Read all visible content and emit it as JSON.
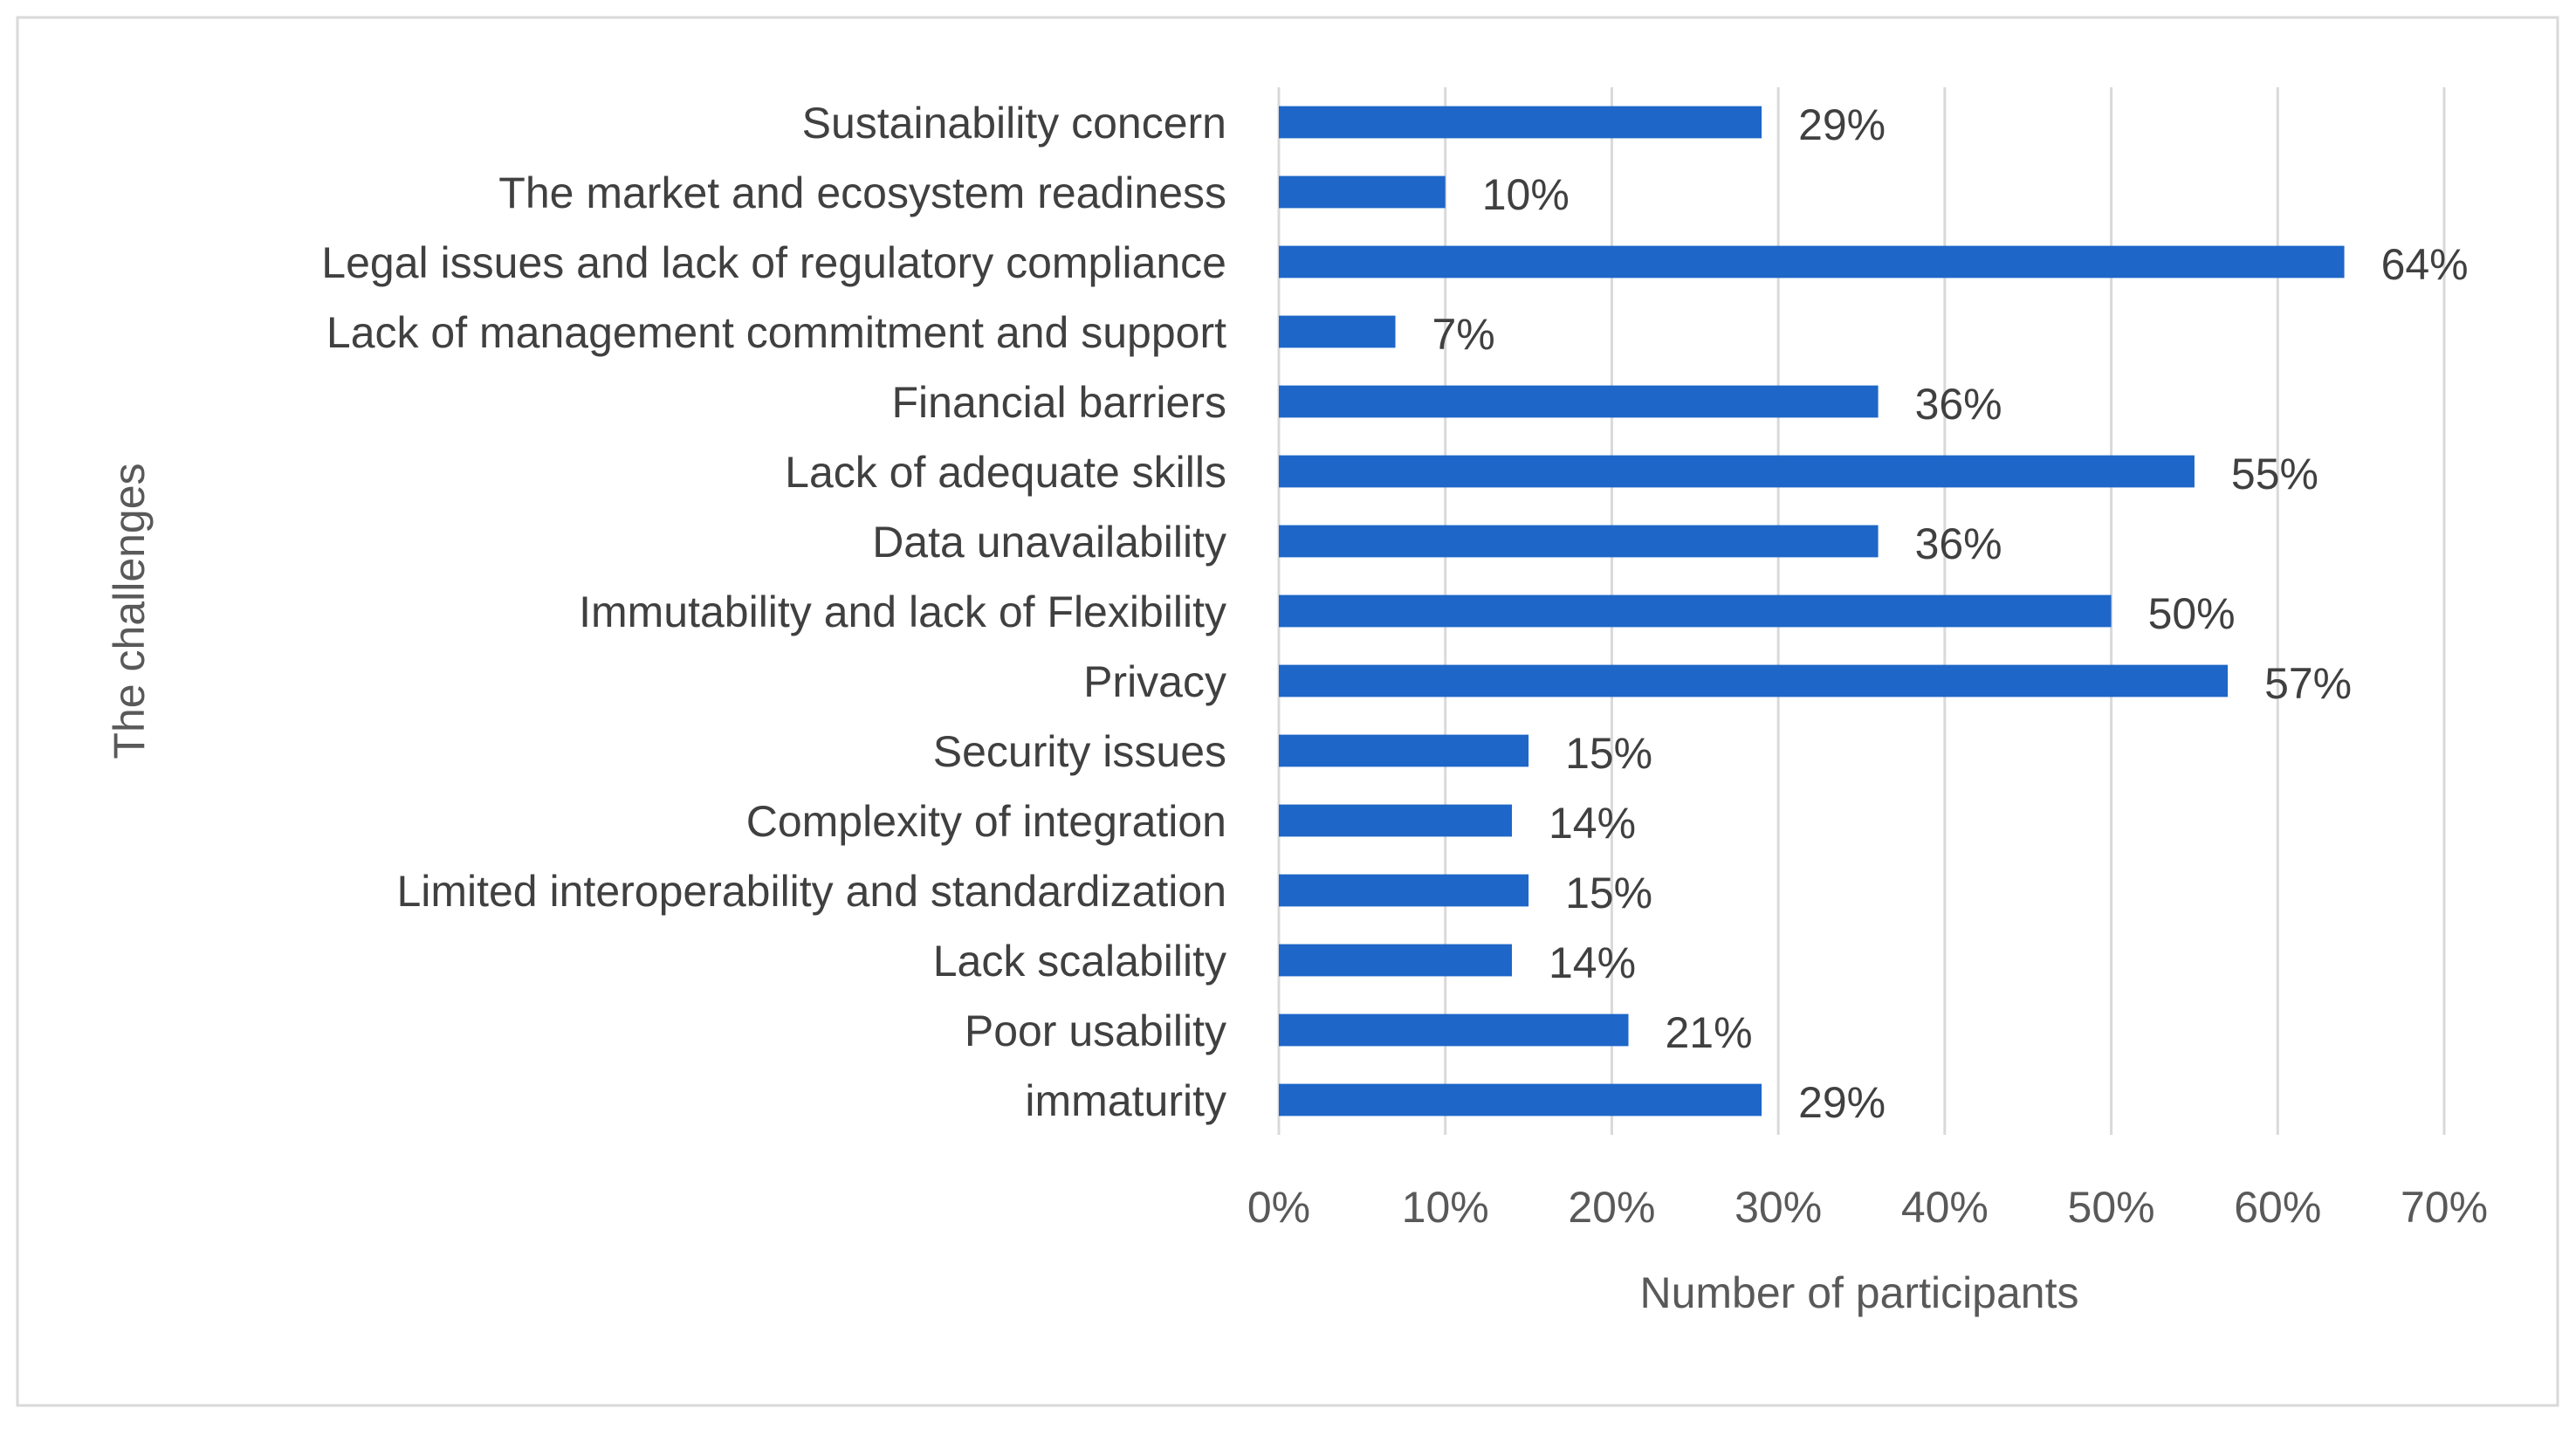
{
  "chart_data": {
    "type": "bar",
    "orientation": "horizontal",
    "title": "",
    "xlabel": "Number of participants",
    "ylabel": "The challenges",
    "xlim": [
      0,
      70
    ],
    "xticks": [
      "0%",
      "10%",
      "20%",
      "30%",
      "40%",
      "50%",
      "60%",
      "70%"
    ],
    "grid": "vertical",
    "legend": "none",
    "bar_color": "#1E66C8",
    "categories": [
      "Sustainability concern",
      "The market and ecosystem readiness",
      "Legal issues and lack of regulatory compliance",
      "Lack of management commitment and support",
      "Financial barriers",
      "Lack of adequate skills",
      "Data unavailability",
      "Immutability and lack of Flexibility",
      "Privacy",
      "Security issues",
      "Complexity of integration",
      "Limited interoperability and standardization",
      "Lack scalability",
      "Poor usability",
      "immaturity"
    ],
    "values": [
      29,
      10,
      64,
      7,
      36,
      55,
      36,
      50,
      57,
      15,
      14,
      15,
      14,
      21,
      29
    ],
    "data_labels": [
      "29%",
      "10%",
      "64%",
      "7%",
      "36%",
      "55%",
      "36%",
      "50%",
      "57%",
      "15%",
      "14%",
      "15%",
      "14%",
      "21%",
      "29%"
    ]
  }
}
